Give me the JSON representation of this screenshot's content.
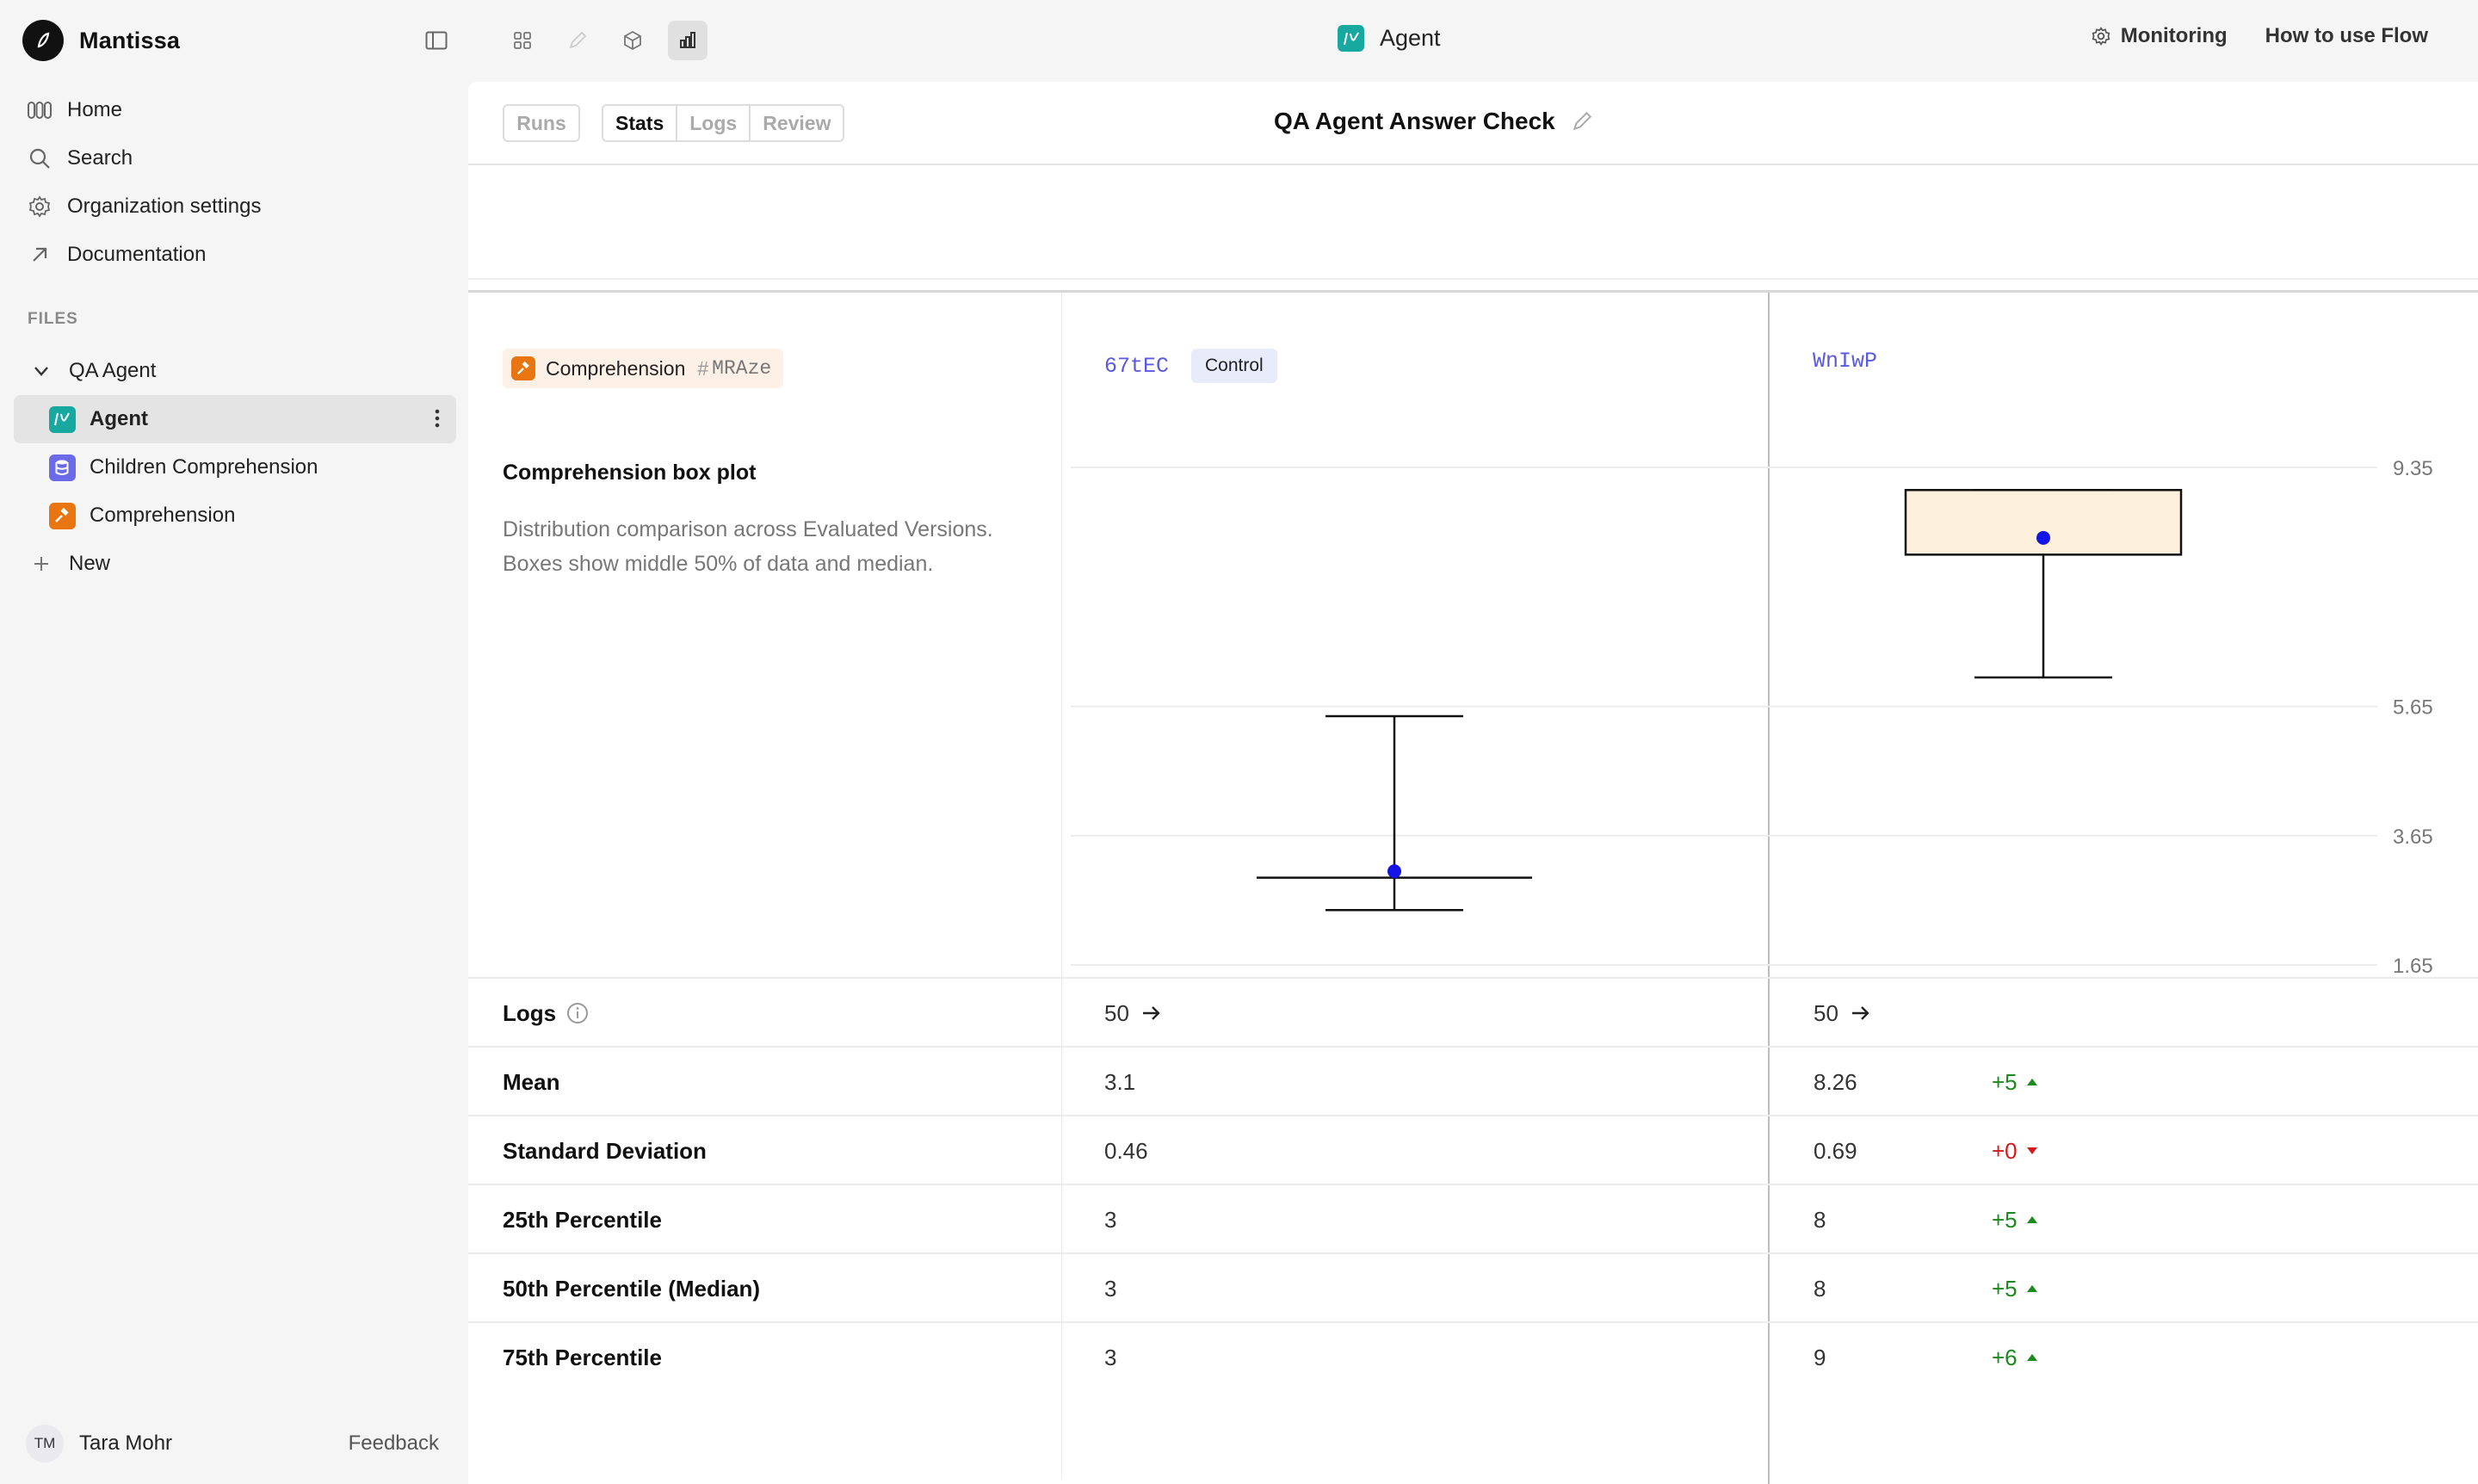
{
  "app": {
    "name": "Mantissa"
  },
  "sidebar": {
    "nav": [
      {
        "label": "Home",
        "icon": "home-icon"
      },
      {
        "label": "Search",
        "icon": "search-icon"
      },
      {
        "label": "Organization settings",
        "icon": "gear-icon"
      },
      {
        "label": "Documentation",
        "icon": "external-link-icon"
      }
    ],
    "files_label": "FILES",
    "tree": {
      "folder": "QA Agent",
      "items": [
        {
          "label": "Agent",
          "selected": true,
          "color": "#17a9a0"
        },
        {
          "label": "Children Comprehension",
          "selected": false,
          "color": "#6b6bea"
        },
        {
          "label": "Comprehension",
          "selected": false,
          "color": "#e8750f"
        }
      ],
      "new_label": "New"
    },
    "user": {
      "initials": "TM",
      "name": "Tara Mohr"
    },
    "feedback_label": "Feedback"
  },
  "topbar": {
    "title": "Agent",
    "monitoring_label": "Monitoring",
    "help_label": "How to use Flow"
  },
  "toolbar": {
    "runs_label": "Runs",
    "tabs": [
      "Stats",
      "Logs",
      "Review"
    ],
    "active_tab": "Stats",
    "doc_title": "QA Agent Answer Check"
  },
  "metric": {
    "name": "Comprehension",
    "hash": "#",
    "code": "MRAze",
    "plot_title": "Comprehension box plot",
    "plot_desc": "Distribution comparison across Evaluated Versions. Boxes show middle 50% of data and median."
  },
  "versions": [
    {
      "code": "67tEC",
      "badge": "Control"
    },
    {
      "code": "WnIwP",
      "badge": ""
    }
  ],
  "chart_data": {
    "type": "box",
    "y_ticks": [
      9.35,
      5.65,
      3.65,
      1.65
    ],
    "ylim": [
      1.65,
      9.35
    ],
    "series": [
      {
        "name": "67tEC",
        "min": 2.5,
        "q1": 3,
        "median": 3,
        "q3": 3,
        "max": 5.5,
        "mean": 3.1
      },
      {
        "name": "WnIwP",
        "min": 6.1,
        "q1": 8,
        "median": 8,
        "q3": 9,
        "max": 9,
        "mean": 8.26
      }
    ],
    "colors": {
      "box_fill": "#fdf0dd",
      "mean_dot": "#1414e6",
      "grid": "#ececec"
    }
  },
  "stats": [
    {
      "label": "Logs",
      "info": true,
      "a": "50",
      "b": "50",
      "delta": "",
      "link": true
    },
    {
      "label": "Mean",
      "a": "3.1",
      "b": "8.26",
      "delta": "+5",
      "dir": "up"
    },
    {
      "label": "Standard Deviation",
      "a": "0.46",
      "b": "0.69",
      "delta": "+0",
      "dir": "down"
    },
    {
      "label": "25th Percentile",
      "a": "3",
      "b": "8",
      "delta": "+5",
      "dir": "up"
    },
    {
      "label": "50th Percentile (Median)",
      "a": "3",
      "b": "8",
      "delta": "+5",
      "dir": "up"
    },
    {
      "label": "75th Percentile",
      "a": "3",
      "b": "9",
      "delta": "+6",
      "dir": "up"
    }
  ]
}
